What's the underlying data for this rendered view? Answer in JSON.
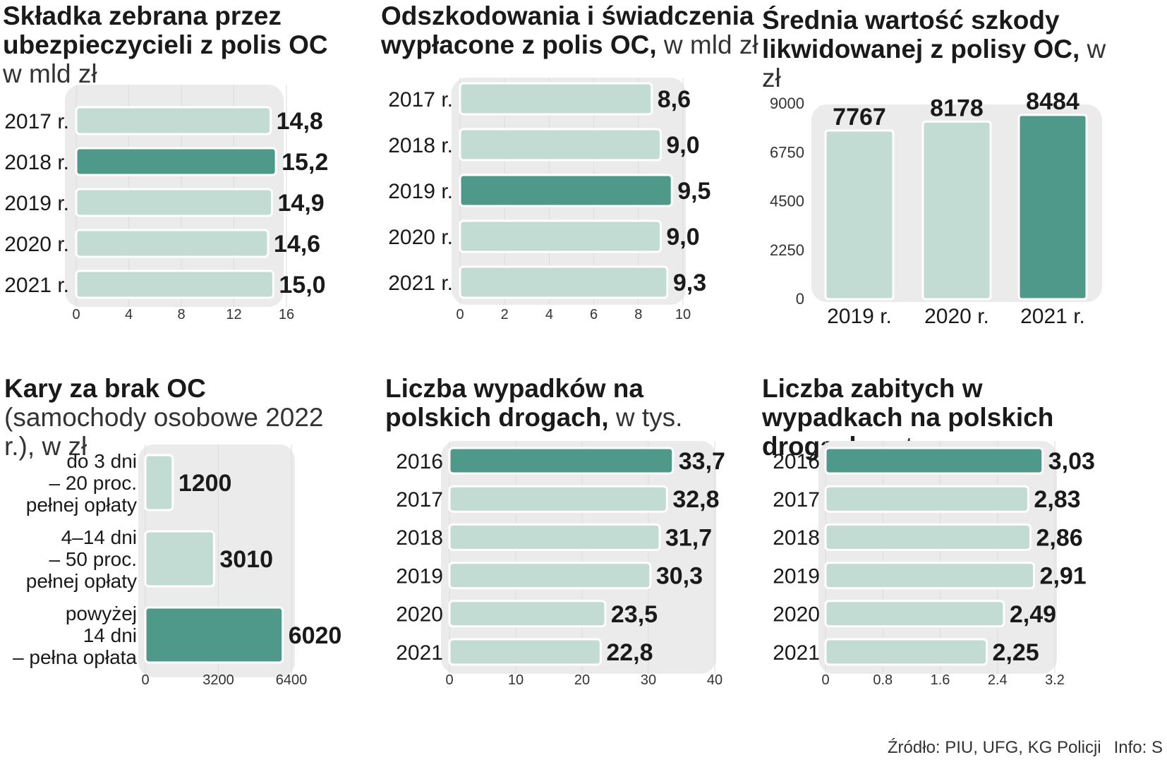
{
  "colors": {
    "bar": "#c2dbd3",
    "bar_highlight": "#4e998a",
    "panel_bg": "#ebebeb",
    "bar_border": "#ffffff",
    "label": "#1a1a1a",
    "axis_text": "#333333"
  },
  "charts": {
    "c1": {
      "title_bold": "Składka zebrana przez ubezpieczycieli z polis OC",
      "title_unit": "w mld zł"
    },
    "c2": {
      "title_bold": "Odszkodowania i świadczenia wypłacone z polis OC,",
      "title_unit": "w mld zł"
    },
    "c3": {
      "title_bold": "Średnia wartość szkody likwidowanej z polisy OC,",
      "title_unit": "w zł"
    },
    "c4": {
      "title_bold": "Kary za brak OC",
      "title_unit": "(samochody osobowe 2022 r.), w zł"
    },
    "c5": {
      "title_bold": "Liczba wypadków na polskich drogach,",
      "title_unit": "w tys."
    },
    "c6": {
      "title_bold": "Liczba zabitych w wypadkach na polskich drogach,",
      "title_unit": "w tys."
    }
  },
  "chart_data": [
    {
      "id": "c1",
      "type": "bar",
      "orientation": "horizontal",
      "title": "Składka zebrana przez ubezpieczycieli z polis OC, w mld zł",
      "categories": [
        "2017 r.",
        "2018 r.",
        "2019 r.",
        "2020 r.",
        "2021 r."
      ],
      "values": [
        14.8,
        15.2,
        14.9,
        14.6,
        15.0
      ],
      "value_labels": [
        "14,8",
        "15,2",
        "14,9",
        "14,6",
        "15,0"
      ],
      "highlight": [
        1
      ],
      "xlim": [
        0,
        16
      ],
      "ticks": [
        0,
        4,
        8,
        12,
        16
      ],
      "tick_labels": [
        "0",
        "4",
        "8",
        "12",
        "16"
      ]
    },
    {
      "id": "c2",
      "type": "bar",
      "orientation": "horizontal",
      "title": "Odszkodowania i świadczenia wypłacone z polis OC, w mld zł",
      "categories": [
        "2017 r.",
        "2018 r.",
        "2019 r.",
        "2020 r.",
        "2021 r."
      ],
      "values": [
        8.6,
        9.0,
        9.5,
        9.0,
        9.3
      ],
      "value_labels": [
        "8,6",
        "9,0",
        "9,5",
        "9,0",
        "9,3"
      ],
      "highlight": [
        2
      ],
      "xlim": [
        0,
        10
      ],
      "ticks": [
        0,
        2,
        4,
        6,
        8,
        10
      ],
      "tick_labels": [
        "0",
        "2",
        "4",
        "6",
        "8",
        "10"
      ]
    },
    {
      "id": "c3",
      "type": "bar",
      "orientation": "vertical",
      "title": "Średnia wartość szkody likwidowanej z polisy OC, w zł",
      "categories": [
        "2019 r.",
        "2020 r.",
        "2021 r."
      ],
      "values": [
        7767,
        8178,
        8484
      ],
      "value_labels": [
        "7767",
        "8178",
        "8484"
      ],
      "highlight": [
        2
      ],
      "ylim": [
        0,
        9000
      ],
      "ticks": [
        0,
        2250,
        4500,
        6750,
        9000
      ],
      "tick_labels": [
        "0",
        "2250",
        "4500",
        "6750",
        "9000"
      ]
    },
    {
      "id": "c4",
      "type": "bar",
      "orientation": "horizontal",
      "title": "Kary za brak OC (samochody osobowe 2022 r.), w zł",
      "categories": [
        [
          "do 3 dni",
          "– 20 proc.",
          "pełnej opłaty"
        ],
        [
          "4–14 dni",
          "– 50 proc.",
          "pełnej opłaty"
        ],
        [
          "powyżej",
          "14 dni",
          "– pełna opłata"
        ]
      ],
      "values": [
        1200,
        3010,
        6020
      ],
      "value_labels": [
        "1200",
        "3010",
        "6020"
      ],
      "highlight": [
        2
      ],
      "xlim": [
        0,
        6400
      ],
      "ticks": [
        0,
        3200,
        6400
      ],
      "tick_labels": [
        "0",
        "3200",
        "6400"
      ]
    },
    {
      "id": "c5",
      "type": "bar",
      "orientation": "horizontal",
      "title": "Liczba wypadków na polskich drogach, w tys.",
      "categories": [
        "2016",
        "2017",
        "2018",
        "2019",
        "2020",
        "2021"
      ],
      "values": [
        33.7,
        32.8,
        31.7,
        30.3,
        23.5,
        22.8
      ],
      "value_labels": [
        "33,7",
        "32,8",
        "31,7",
        "30,3",
        "23,5",
        "22,8"
      ],
      "highlight": [
        0
      ],
      "xlim": [
        0,
        40
      ],
      "ticks": [
        0,
        10,
        20,
        30,
        40
      ],
      "tick_labels": [
        "0",
        "10",
        "20",
        "30",
        "40"
      ]
    },
    {
      "id": "c6",
      "type": "bar",
      "orientation": "horizontal",
      "title": "Liczba zabitych w wypadkach na polskich drogach, w tys.",
      "categories": [
        "2016",
        "2017",
        "2018",
        "2019",
        "2020",
        "2021"
      ],
      "values": [
        3.03,
        2.83,
        2.86,
        2.91,
        2.49,
        2.25
      ],
      "value_labels": [
        "3,03",
        "2,83",
        "2,86",
        "2,91",
        "2,49",
        "2,25"
      ],
      "highlight": [
        0
      ],
      "xlim": [
        0,
        3.2
      ],
      "ticks": [
        0,
        0.8,
        1.6,
        2.4,
        3.2
      ],
      "tick_labels": [
        "0",
        "0.8",
        "1.6",
        "2.4",
        "3.2"
      ]
    }
  ],
  "footer": {
    "source": "Źródło: PIU, UFG, KG Policji",
    "info": "Info: S"
  }
}
